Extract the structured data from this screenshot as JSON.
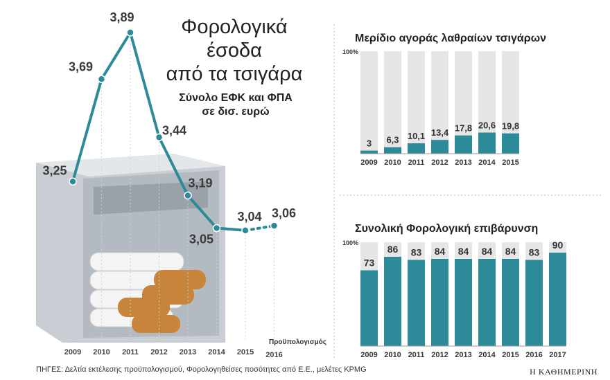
{
  "main": {
    "title_lines": [
      "Φορολογικά",
      "έσοδα",
      "από τα τσιγάρα"
    ],
    "subtitle_lines": [
      "Σύνολο ΕΦΚ και ΦΠΑ",
      "σε δισ. ευρώ"
    ],
    "forecast_note": "Προϋπολογισμός"
  },
  "footer": {
    "source": "ΠΗΓΕΣ: Δελτία εκτέλεσης προϋπολογισμού, Φορολογηθείσες ποσότητες από Ε.Ε., μελέτες KPMG",
    "brand": "Η ΚΑΘΗΜΕΡΙΝΗ"
  },
  "colors": {
    "teal": "#2d8a98",
    "bar_bg": "#e6e6e6",
    "grid": "#cfcfcf"
  },
  "chart_data": [
    {
      "type": "line",
      "title": "Φορολογικά έσοδα από τα τσιγάρα",
      "subtitle": "Σύνολο ΕΦΚ και ΦΠΑ σε δισ. ευρώ",
      "x": [
        "2009",
        "2010",
        "2011",
        "2012",
        "2013",
        "2014",
        "2015",
        "2016"
      ],
      "x_extra_label": "Προϋπολογισμός",
      "values": [
        3.25,
        3.69,
        3.89,
        3.44,
        3.19,
        3.05,
        3.04,
        3.06
      ],
      "labels": [
        "3,25",
        "3,69",
        "3,89",
        "3,44",
        "3,19",
        "3,05",
        "3,04",
        "3,06"
      ],
      "dashed_from_index": 6,
      "ylim": [
        2.9,
        4.0
      ]
    },
    {
      "type": "bar",
      "title": "Μερίδιο αγοράς λαθραίων τσιγάρων",
      "categories": [
        "2009",
        "2010",
        "2011",
        "2012",
        "2013",
        "2014",
        "2015"
      ],
      "values": [
        3,
        6.3,
        10.1,
        13.4,
        17.8,
        20.6,
        19.8
      ],
      "labels": [
        "3",
        "6,3",
        "10,1",
        "13,4",
        "17,8",
        "20,6",
        "19,8"
      ],
      "ymax_label": "100%",
      "ylim": [
        0,
        100
      ]
    },
    {
      "type": "bar",
      "title": "Συνολική Φορολογική επιβάρυνση",
      "categories": [
        "2009",
        "2010",
        "2011",
        "2012",
        "2013",
        "2014",
        "2015",
        "2016",
        "2017"
      ],
      "values": [
        73,
        86,
        83,
        84,
        84,
        84,
        84,
        83,
        90
      ],
      "labels": [
        "73",
        "86",
        "83",
        "84",
        "84",
        "84",
        "84",
        "83",
        "90"
      ],
      "ymax_label": "100%",
      "ylim": [
        0,
        100
      ]
    }
  ]
}
